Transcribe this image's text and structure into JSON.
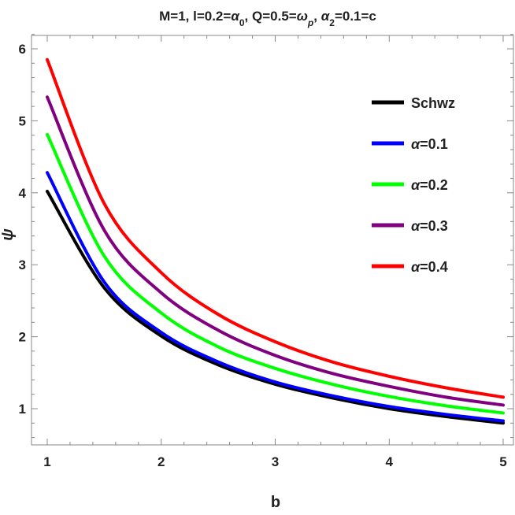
{
  "chart_data": {
    "type": "line",
    "title_parts": [
      {
        "text": "M=1, l=0.2=",
        "style": "normal"
      },
      {
        "text": "α",
        "style": "italic"
      },
      {
        "text": "0",
        "style": "sub"
      },
      {
        "text": ",  Q=0.5=",
        "style": "normal"
      },
      {
        "text": "ω",
        "style": "italic"
      },
      {
        "text": "p",
        "style": "sub-italic"
      },
      {
        "text": ", ",
        "style": "normal"
      },
      {
        "text": "α",
        "style": "italic"
      },
      {
        "text": "2",
        "style": "sub"
      },
      {
        "text": "=0.1=c",
        "style": "normal"
      }
    ],
    "xlabel": "b",
    "ylabel": "ψ",
    "xlim": [
      1,
      5
    ],
    "ylim": [
      0.5,
      6.2
    ],
    "x_ticks": [
      1,
      2,
      3,
      4,
      5
    ],
    "y_ticks": [
      1,
      2,
      3,
      4,
      5,
      6
    ],
    "grid": false,
    "legend_position": "top-right",
    "series": [
      {
        "name": "Schwz",
        "legend_symbol": "",
        "legend_value": "",
        "color": "#000000",
        "x": [
          1,
          1.5,
          2,
          2.5,
          3,
          3.5,
          4,
          4.5,
          5
        ],
        "y": [
          4.02,
          2.68,
          2.01,
          1.61,
          1.34,
          1.15,
          1.0,
          0.89,
          0.8
        ]
      },
      {
        "name": "α=0.1",
        "legend_symbol": "α",
        "legend_value": "=0.1",
        "color": "#0000ff",
        "x": [
          1,
          1.5,
          2,
          2.5,
          3,
          3.5,
          4,
          4.5,
          5
        ],
        "y": [
          4.28,
          2.76,
          2.06,
          1.65,
          1.37,
          1.18,
          1.03,
          0.92,
          0.83
        ]
      },
      {
        "name": "α=0.2",
        "legend_symbol": "α",
        "legend_value": "=0.2",
        "color": "#00ff00",
        "x": [
          1,
          1.5,
          2,
          2.5,
          3,
          3.5,
          4,
          4.5,
          5
        ],
        "y": [
          4.81,
          3.12,
          2.33,
          1.86,
          1.56,
          1.34,
          1.17,
          1.04,
          0.94
        ]
      },
      {
        "name": "α=0.3",
        "legend_symbol": "α",
        "legend_value": "=0.3",
        "color": "#800080",
        "x": [
          1,
          1.5,
          2,
          2.5,
          3,
          3.5,
          4,
          4.5,
          5
        ],
        "y": [
          5.33,
          3.48,
          2.61,
          2.09,
          1.74,
          1.49,
          1.31,
          1.16,
          1.05
        ]
      },
      {
        "name": "α=0.4",
        "legend_symbol": "α",
        "legend_value": "=0.4",
        "color": "#ff0000",
        "x": [
          1,
          1.5,
          2,
          2.5,
          3,
          3.5,
          4,
          4.5,
          5
        ],
        "y": [
          5.85,
          3.85,
          2.89,
          2.31,
          1.93,
          1.65,
          1.45,
          1.29,
          1.16
        ]
      }
    ]
  }
}
